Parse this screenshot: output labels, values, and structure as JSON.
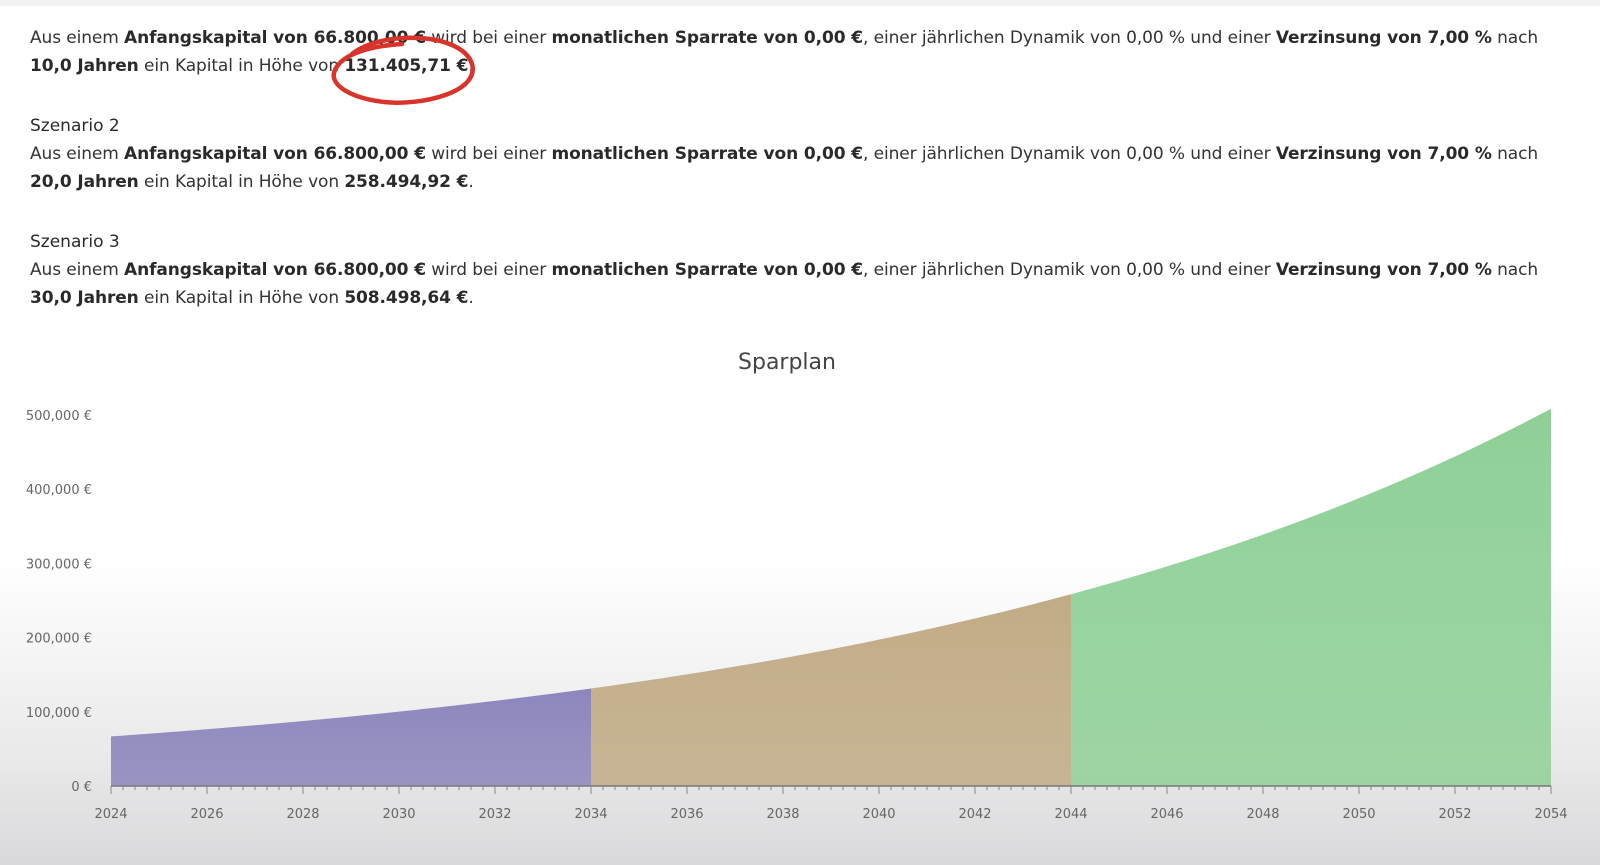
{
  "scenario1": {
    "s1": "Aus einem ",
    "b1": "Anfangskapital von 66.800,00 €",
    "s2": " wird bei einer ",
    "b2": "monatlichen Sparrate von 0,00 €",
    "s3": ", einer jährlichen Dynamik von 0,00 % und einer ",
    "b3": "Verzinsung von 7,00 %",
    "s4": " nach ",
    "b4": "10,0 Jahren",
    "s5": " ein Kapital in Höhe von ",
    "b5": "131.405,71 €",
    "s6": "."
  },
  "scenario2": {
    "title": "Szenario 2",
    "s1": "Aus einem ",
    "b1": "Anfangskapital von 66.800,00 €",
    "s2": " wird bei einer ",
    "b2": "monatlichen Sparrate von 0,00 €",
    "s3": ", einer jährlichen Dynamik von 0,00 % und einer ",
    "b3": "Verzinsung von 7,00 %",
    "s4": " nach ",
    "b4": "20,0 Jahren",
    "s5": " ein Kapital in Höhe von ",
    "b5": "258.494,92 €",
    "s6": "."
  },
  "scenario3": {
    "title": "Szenario 3",
    "s1": "Aus einem ",
    "b1": "Anfangskapital von 66.800,00 €",
    "s2": " wird bei einer ",
    "b2": "monatlichen Sparrate von 0,00 €",
    "s3": ", einer jährlichen Dynamik von 0,00 % und einer ",
    "b3": "Verzinsung von 7,00 %",
    "s4": " nach ",
    "b4": "30,0 Jahren",
    "s5": " ein Kapital in Höhe von ",
    "b5": "508.498,64 €",
    "s6": "."
  },
  "annotation_color": "#d9342b",
  "chart_data": {
    "type": "area",
    "title": "Sparplan",
    "xlabel": "",
    "ylabel": "",
    "xlim": [
      2024,
      2054
    ],
    "ylim": [
      0,
      500000
    ],
    "x_ticks": [
      "2024",
      "2026",
      "2028",
      "2030",
      "2032",
      "2034",
      "2036",
      "2038",
      "2040",
      "2042",
      "2044",
      "2046",
      "2048",
      "2050",
      "2052",
      "2054"
    ],
    "y_ticks": [
      {
        "value": 0,
        "label": "0 €"
      },
      {
        "value": 100000,
        "label": "100,000 €"
      },
      {
        "value": 200000,
        "label": "200,000 €"
      },
      {
        "value": 300000,
        "label": "300,000 €"
      },
      {
        "value": 400000,
        "label": "400,000 €"
      },
      {
        "value": 500000,
        "label": "500,000 €"
      }
    ],
    "grid": false,
    "series": [
      {
        "x_start": 2024,
        "x_end": 2034,
        "color": "#8d86bd",
        "x": [
          2024,
          2025,
          2026,
          2027,
          2028,
          2029,
          2030,
          2031,
          2032,
          2033,
          2034
        ],
        "values": [
          66800,
          71476,
          76479,
          81833,
          87561,
          93691,
          100249,
          107266,
          114775,
          122809,
          131406
        ]
      },
      {
        "x_start": 2034,
        "x_end": 2044,
        "color": "#c2ab86",
        "x": [
          2034,
          2035,
          2036,
          2037,
          2038,
          2039,
          2040,
          2041,
          2042,
          2043,
          2044
        ],
        "values": [
          131406,
          140604,
          150446,
          160978,
          172246,
          184303,
          197204,
          211009,
          225779,
          241584,
          258495
        ]
      },
      {
        "x_start": 2044,
        "x_end": 2054,
        "color": "#8fd097",
        "x": [
          2044,
          2045,
          2046,
          2047,
          2048,
          2049,
          2050,
          2051,
          2052,
          2053,
          2054
        ],
        "values": [
          258495,
          276589,
          295950,
          316667,
          338833,
          362552,
          387930,
          415085,
          444141,
          475231,
          508499
        ]
      }
    ]
  }
}
